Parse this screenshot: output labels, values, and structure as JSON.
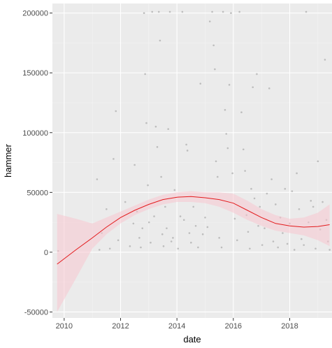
{
  "chart_data": {
    "type": "scatter",
    "xlabel": "date",
    "ylabel": "hammer",
    "x_ticks": [
      "2010",
      "2012",
      "2014",
      "2016",
      "2018"
    ],
    "y_ticks": [
      "-50000",
      "0",
      "50000",
      "100000",
      "150000",
      "200000"
    ],
    "xlim": [
      "2009-08-01",
      "2019-07-01"
    ],
    "ylim": [
      -55000,
      208000
    ],
    "grid": true,
    "legend": "none",
    "colors": {
      "panel": "#ebebeb",
      "grid_major": "#ffffff",
      "grid_minor": "#f4f4f4",
      "points": "#bdbdbd",
      "smooth_line": "#e31a1c",
      "ribbon": "#f7c6d0"
    },
    "smooth_line": {
      "x": [
        "2009-10-01",
        "2010-06-01",
        "2011-01-01",
        "2011-07-01",
        "2012-01-01",
        "2012-07-01",
        "2013-01-01",
        "2013-07-01",
        "2014-01-01",
        "2014-07-01",
        "2015-01-01",
        "2015-07-01",
        "2016-01-01",
        "2016-07-01",
        "2017-01-01",
        "2017-07-01",
        "2018-01-01",
        "2018-07-01",
        "2019-01-01",
        "2019-06-01"
      ],
      "y": [
        -10000,
        2000,
        12000,
        21000,
        29000,
        35000,
        40000,
        44000,
        46000,
        46500,
        45500,
        44000,
        41000,
        35000,
        29000,
        24000,
        22000,
        21000,
        21500,
        23000
      ]
    },
    "ribbon": {
      "lower": [
        -50000,
        -22000,
        3000,
        15000,
        24000,
        31000,
        36000,
        40000,
        42000,
        42000,
        41000,
        38000,
        33000,
        27000,
        22000,
        18000,
        16000,
        14000,
        10000,
        5000
      ],
      "upper": [
        32000,
        28000,
        24000,
        29000,
        34000,
        39000,
        44000,
        48000,
        50000,
        51000,
        50000,
        50000,
        49000,
        43000,
        36000,
        31000,
        28000,
        29000,
        33000,
        40000
      ]
    },
    "points": [
      {
        "x": "2009-10-15",
        "y": 1000
      },
      {
        "x": "2011-03-01",
        "y": 61000
      },
      {
        "x": "2011-04-01",
        "y": 2000
      },
      {
        "x": "2011-05-01",
        "y": 16000
      },
      {
        "x": "2011-07-01",
        "y": 36000
      },
      {
        "x": "2011-08-15",
        "y": 3000
      },
      {
        "x": "2011-10-01",
        "y": 78000
      },
      {
        "x": "2011-11-01",
        "y": 118000
      },
      {
        "x": "2011-12-01",
        "y": 10000
      },
      {
        "x": "2012-03-01",
        "y": 42000
      },
      {
        "x": "2012-05-01",
        "y": 5000
      },
      {
        "x": "2012-06-15",
        "y": 24000
      },
      {
        "x": "2012-07-01",
        "y": 73000
      },
      {
        "x": "2012-08-01",
        "y": 34000
      },
      {
        "x": "2012-09-01",
        "y": 12000
      },
      {
        "x": "2012-09-20",
        "y": 4000
      },
      {
        "x": "2012-10-10",
        "y": 20000
      },
      {
        "x": "2012-11-01",
        "y": 200000
      },
      {
        "x": "2012-11-15",
        "y": 149000
      },
      {
        "x": "2012-12-01",
        "y": 108000
      },
      {
        "x": "2012-12-20",
        "y": 56000
      },
      {
        "x": "2013-01-05",
        "y": 25000
      },
      {
        "x": "2013-01-25",
        "y": 8000
      },
      {
        "x": "2013-02-15",
        "y": 201000
      },
      {
        "x": "2013-03-10",
        "y": 30000
      },
      {
        "x": "2013-04-01",
        "y": 105000
      },
      {
        "x": "2013-04-20",
        "y": 88000
      },
      {
        "x": "2013-05-10",
        "y": 201000
      },
      {
        "x": "2013-05-25",
        "y": 177000
      },
      {
        "x": "2013-06-10",
        "y": 63000
      },
      {
        "x": "2013-06-25",
        "y": 15000
      },
      {
        "x": "2013-07-10",
        "y": 5000
      },
      {
        "x": "2013-08-01",
        "y": 38000
      },
      {
        "x": "2013-08-20",
        "y": 20000
      },
      {
        "x": "2013-09-10",
        "y": 103000
      },
      {
        "x": "2013-10-01",
        "y": 201000
      },
      {
        "x": "2013-10-20",
        "y": 9000
      },
      {
        "x": "2013-11-10",
        "y": 12000
      },
      {
        "x": "2013-12-01",
        "y": 52000
      },
      {
        "x": "2014-01-15",
        "y": 3000
      },
      {
        "x": "2014-02-15",
        "y": 30000
      },
      {
        "x": "2014-03-10",
        "y": 201000
      },
      {
        "x": "2014-04-01",
        "y": 27000
      },
      {
        "x": "2014-05-01",
        "y": 90000
      },
      {
        "x": "2014-05-15",
        "y": 85000
      },
      {
        "x": "2014-06-10",
        "y": 16000
      },
      {
        "x": "2014-07-01",
        "y": 8000
      },
      {
        "x": "2014-08-01",
        "y": 38000
      },
      {
        "x": "2014-09-01",
        "y": 22000
      },
      {
        "x": "2014-10-01",
        "y": 4000
      },
      {
        "x": "2014-11-01",
        "y": 141000
      },
      {
        "x": "2014-12-01",
        "y": 15000
      },
      {
        "x": "2015-01-01",
        "y": 29000
      },
      {
        "x": "2015-02-01",
        "y": 21000
      },
      {
        "x": "2015-03-01",
        "y": 193000
      },
      {
        "x": "2015-04-01",
        "y": 201000
      },
      {
        "x": "2015-04-20",
        "y": 173000
      },
      {
        "x": "2015-05-05",
        "y": 153000
      },
      {
        "x": "2015-05-20",
        "y": 76000
      },
      {
        "x": "2015-06-10",
        "y": 63000
      },
      {
        "x": "2015-07-01",
        "y": 12000
      },
      {
        "x": "2015-08-01",
        "y": 4000
      },
      {
        "x": "2015-08-20",
        "y": 201000
      },
      {
        "x": "2015-09-15",
        "y": 119000
      },
      {
        "x": "2015-10-01",
        "y": 99000
      },
      {
        "x": "2015-10-20",
        "y": 87000
      },
      {
        "x": "2015-11-10",
        "y": 140000
      },
      {
        "x": "2015-12-01",
        "y": 200000
      },
      {
        "x": "2015-12-20",
        "y": 66000
      },
      {
        "x": "2016-01-20",
        "y": 28000
      },
      {
        "x": "2016-02-20",
        "y": 10000
      },
      {
        "x": "2016-03-20",
        "y": 201000
      },
      {
        "x": "2016-04-15",
        "y": 117000
      },
      {
        "x": "2016-05-10",
        "y": 86000
      },
      {
        "x": "2016-06-01",
        "y": 68000
      },
      {
        "x": "2016-06-20",
        "y": 31000
      },
      {
        "x": "2016-07-10",
        "y": 17000
      },
      {
        "x": "2016-08-01",
        "y": 3000
      },
      {
        "x": "2016-08-20",
        "y": 53000
      },
      {
        "x": "2016-09-10",
        "y": 138000
      },
      {
        "x": "2016-10-01",
        "y": 45000
      },
      {
        "x": "2016-11-01",
        "y": 149000
      },
      {
        "x": "2016-11-20",
        "y": 22000
      },
      {
        "x": "2016-12-10",
        "y": 38000
      },
      {
        "x": "2017-01-10",
        "y": 6000
      },
      {
        "x": "2017-02-10",
        "y": 20000
      },
      {
        "x": "2017-03-10",
        "y": 49000
      },
      {
        "x": "2017-04-10",
        "y": 137000
      },
      {
        "x": "2017-05-10",
        "y": 61000
      },
      {
        "x": "2017-06-01",
        "y": 9000
      },
      {
        "x": "2017-07-01",
        "y": 40000
      },
      {
        "x": "2017-08-01",
        "y": 4000
      },
      {
        "x": "2017-09-01",
        "y": 29000
      },
      {
        "x": "2017-10-01",
        "y": 16000
      },
      {
        "x": "2017-11-01",
        "y": 53000
      },
      {
        "x": "2017-12-01",
        "y": 7000
      },
      {
        "x": "2018-01-01",
        "y": 24000
      },
      {
        "x": "2018-02-01",
        "y": 51000
      },
      {
        "x": "2018-03-01",
        "y": 2000
      },
      {
        "x": "2018-04-01",
        "y": 66000
      },
      {
        "x": "2018-05-01",
        "y": 36000
      },
      {
        "x": "2018-06-01",
        "y": 11000
      },
      {
        "x": "2018-07-01",
        "y": 6000
      },
      {
        "x": "2018-08-01",
        "y": 201000
      },
      {
        "x": "2018-09-01",
        "y": 25000
      },
      {
        "x": "2018-10-01",
        "y": 43000
      },
      {
        "x": "2018-11-01",
        "y": 38000
      },
      {
        "x": "2018-12-01",
        "y": 3000
      },
      {
        "x": "2019-01-01",
        "y": 76000
      },
      {
        "x": "2019-02-01",
        "y": 19000
      },
      {
        "x": "2019-03-01",
        "y": 42000
      },
      {
        "x": "2019-04-01",
        "y": 161000
      },
      {
        "x": "2019-04-20",
        "y": 27000
      },
      {
        "x": "2019-05-10",
        "y": 9000
      },
      {
        "x": "2019-06-01",
        "y": 2000
      }
    ]
  }
}
